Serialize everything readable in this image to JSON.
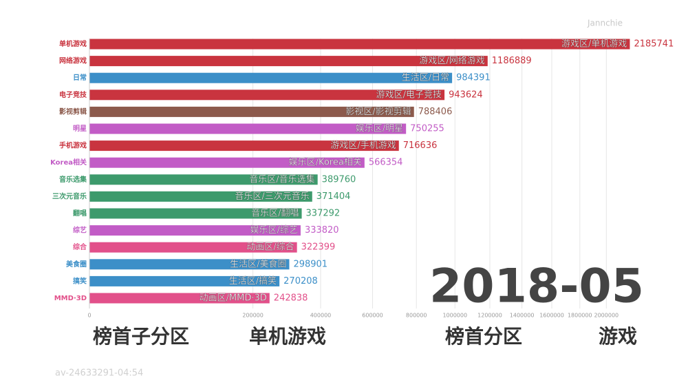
{
  "chart_data": {
    "type": "bar",
    "orientation": "horizontal",
    "xscale": "sqrt",
    "categories": [
      "单机游戏",
      "网络游戏",
      "日常",
      "电子竞技",
      "影视剪辑",
      "明星",
      "手机游戏",
      "Korea相关",
      "音乐选集",
      "三次元音乐",
      "翻唱",
      "综艺",
      "综合",
      "美食圈",
      "搞笑",
      "MMD·3D"
    ],
    "bar_labels": [
      "游戏区/单机游戏",
      "游戏区/网络游戏",
      "生活区/日常",
      "游戏区/电子竞技",
      "影视区/影视剪辑",
      "娱乐区/明星",
      "游戏区/手机游戏",
      "娱乐区/Korea相关",
      "音乐区/音乐选集",
      "音乐区/三次元音乐",
      "音乐区/翻唱",
      "娱乐区/综艺",
      "动画区/综合",
      "生活区/美食圈",
      "生活区/搞笑",
      "动画区/MMD·3D"
    ],
    "values": [
      2185741,
      1186889,
      984391,
      943624,
      788406,
      750255,
      716636,
      566354,
      389760,
      371404,
      337292,
      333820,
      322399,
      298901,
      270208,
      242838
    ],
    "colors": [
      "#c9343f",
      "#c9343f",
      "#3c8fc8",
      "#c9343f",
      "#8c5a4c",
      "#c25cc6",
      "#c9343f",
      "#c25cc6",
      "#3d9a6c",
      "#3d9a6c",
      "#3d9a6c",
      "#c25cc6",
      "#e2508a",
      "#3c8fc8",
      "#3c8fc8",
      "#e2508a"
    ],
    "xlim": [
      0,
      2200000
    ],
    "xticks": [
      0,
      200000,
      400000,
      600000,
      800000,
      1000000,
      1200000,
      1400000,
      1600000,
      1800000,
      2000000
    ],
    "grid": true,
    "date": "2018-05"
  },
  "footer": {
    "items": [
      "榜首子分区",
      "单机游戏",
      "榜首分区",
      "游戏"
    ]
  },
  "watermark": {
    "author": "Jannchie",
    "video": "av-24633291-04:54"
  }
}
